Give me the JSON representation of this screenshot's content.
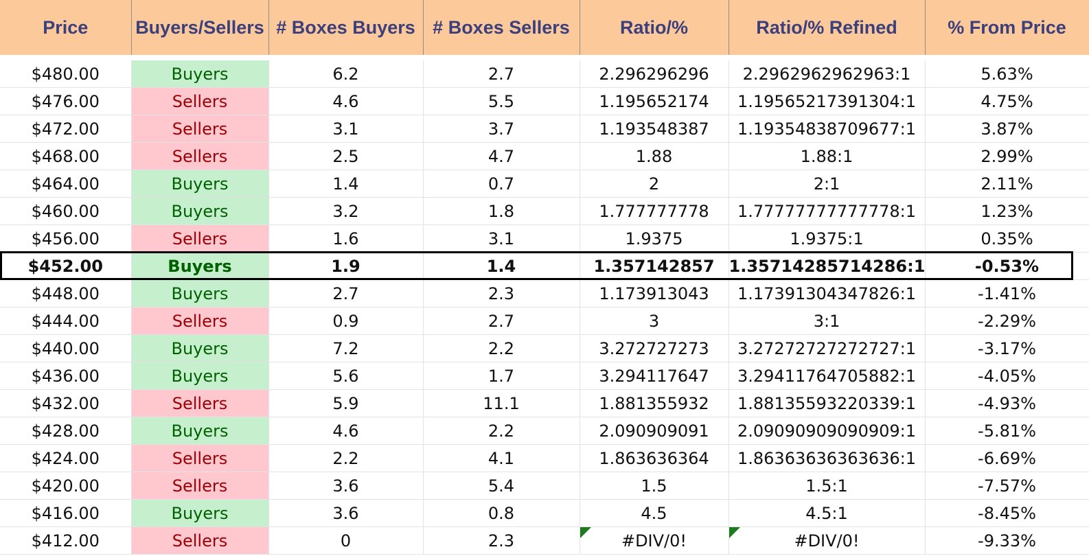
{
  "columns": [
    "Price",
    "Buyers/Sellers",
    "# Boxes Buyers",
    "# Boxes Sellers",
    "Ratio/%",
    "Ratio/% Refined",
    "% From Price"
  ],
  "colors": {
    "header_bg": "#fcc99b",
    "header_text": "#3b3f7c",
    "buyers_bg": "#c6efce",
    "buyers_text": "#006100",
    "sellers_bg": "#ffc7ce",
    "sellers_text": "#9c0006",
    "error_flag": "#1f7a1f"
  },
  "rows": [
    {
      "price": "$480.00",
      "side": "Buyers",
      "boxes_buyers": "6.2",
      "boxes_sellers": "2.7",
      "ratio": "2.296296296",
      "ratio_refined": "2.2962962962963:1",
      "from_price": "5.63%"
    },
    {
      "price": "$476.00",
      "side": "Sellers",
      "boxes_buyers": "4.6",
      "boxes_sellers": "5.5",
      "ratio": "1.195652174",
      "ratio_refined": "1.19565217391304:1",
      "from_price": "4.75%"
    },
    {
      "price": "$472.00",
      "side": "Sellers",
      "boxes_buyers": "3.1",
      "boxes_sellers": "3.7",
      "ratio": "1.193548387",
      "ratio_refined": "1.19354838709677:1",
      "from_price": "3.87%"
    },
    {
      "price": "$468.00",
      "side": "Sellers",
      "boxes_buyers": "2.5",
      "boxes_sellers": "4.7",
      "ratio": "1.88",
      "ratio_refined": "1.88:1",
      "from_price": "2.99%"
    },
    {
      "price": "$464.00",
      "side": "Buyers",
      "boxes_buyers": "1.4",
      "boxes_sellers": "0.7",
      "ratio": "2",
      "ratio_refined": "2:1",
      "from_price": "2.11%"
    },
    {
      "price": "$460.00",
      "side": "Buyers",
      "boxes_buyers": "3.2",
      "boxes_sellers": "1.8",
      "ratio": "1.777777778",
      "ratio_refined": "1.77777777777778:1",
      "from_price": "1.23%"
    },
    {
      "price": "$456.00",
      "side": "Sellers",
      "boxes_buyers": "1.6",
      "boxes_sellers": "3.1",
      "ratio": "1.9375",
      "ratio_refined": "1.9375:1",
      "from_price": "0.35%"
    },
    {
      "price": "$452.00",
      "side": "Buyers",
      "boxes_buyers": "1.9",
      "boxes_sellers": "1.4",
      "ratio": "1.357142857",
      "ratio_refined": "1.35714285714286:1",
      "from_price": "-0.53%",
      "current": true
    },
    {
      "price": "$448.00",
      "side": "Buyers",
      "boxes_buyers": "2.7",
      "boxes_sellers": "2.3",
      "ratio": "1.173913043",
      "ratio_refined": "1.17391304347826:1",
      "from_price": "-1.41%"
    },
    {
      "price": "$444.00",
      "side": "Sellers",
      "boxes_buyers": "0.9",
      "boxes_sellers": "2.7",
      "ratio": "3",
      "ratio_refined": "3:1",
      "from_price": "-2.29%"
    },
    {
      "price": "$440.00",
      "side": "Buyers",
      "boxes_buyers": "7.2",
      "boxes_sellers": "2.2",
      "ratio": "3.272727273",
      "ratio_refined": "3.27272727272727:1",
      "from_price": "-3.17%"
    },
    {
      "price": "$436.00",
      "side": "Buyers",
      "boxes_buyers": "5.6",
      "boxes_sellers": "1.7",
      "ratio": "3.294117647",
      "ratio_refined": "3.29411764705882:1",
      "from_price": "-4.05%"
    },
    {
      "price": "$432.00",
      "side": "Sellers",
      "boxes_buyers": "5.9",
      "boxes_sellers": "11.1",
      "ratio": "1.881355932",
      "ratio_refined": "1.88135593220339:1",
      "from_price": "-4.93%"
    },
    {
      "price": "$428.00",
      "side": "Buyers",
      "boxes_buyers": "4.6",
      "boxes_sellers": "2.2",
      "ratio": "2.090909091",
      "ratio_refined": "2.09090909090909:1",
      "from_price": "-5.81%"
    },
    {
      "price": "$424.00",
      "side": "Sellers",
      "boxes_buyers": "2.2",
      "boxes_sellers": "4.1",
      "ratio": "1.863636364",
      "ratio_refined": "1.86363636363636:1",
      "from_price": "-6.69%"
    },
    {
      "price": "$420.00",
      "side": "Sellers",
      "boxes_buyers": "3.6",
      "boxes_sellers": "5.4",
      "ratio": "1.5",
      "ratio_refined": "1.5:1",
      "from_price": "-7.57%"
    },
    {
      "price": "$416.00",
      "side": "Buyers",
      "boxes_buyers": "3.6",
      "boxes_sellers": "0.8",
      "ratio": "4.5",
      "ratio_refined": "4.5:1",
      "from_price": "-8.45%"
    },
    {
      "price": "$412.00",
      "side": "Sellers",
      "boxes_buyers": "0",
      "boxes_sellers": "2.3",
      "ratio": "#DIV/0!",
      "ratio_refined": "#DIV/0!",
      "from_price": "-9.33%",
      "error": true
    }
  ]
}
